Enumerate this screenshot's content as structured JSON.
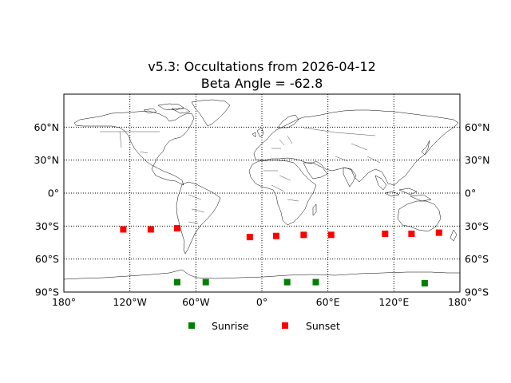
{
  "map": {
    "title_line1": "v5.3: Occultations from 2026-04-12",
    "title_line2": "Beta Angle = -62.8",
    "projection": "equirectangular",
    "lon_range": [
      -180,
      180
    ],
    "lat_range": [
      -90,
      90
    ],
    "lat_ticks": [
      {
        "value": 60,
        "label": "60°N"
      },
      {
        "value": 30,
        "label": "30°N"
      },
      {
        "value": 0,
        "label": "0°"
      },
      {
        "value": -30,
        "label": "30°S"
      },
      {
        "value": -60,
        "label": "60°S"
      },
      {
        "value": -90,
        "label": "90°S"
      }
    ],
    "lon_ticks": [
      {
        "value": -180,
        "label": "180°"
      },
      {
        "value": -120,
        "label": "120°W"
      },
      {
        "value": -60,
        "label": "60°W"
      },
      {
        "value": 0,
        "label": "0°"
      },
      {
        "value": 60,
        "label": "60°E"
      },
      {
        "value": 120,
        "label": "120°E"
      },
      {
        "value": 180,
        "label": "180°"
      }
    ],
    "grid": true,
    "legend": {
      "placement": "bottom-center",
      "sunrise_label": "Sunrise",
      "sunset_label": "Sunset"
    },
    "colors": {
      "sunrise": "#008000",
      "sunset": "#ff0000",
      "coastline": "#000000",
      "grid": "#000000"
    }
  },
  "chart_data": {
    "type": "scatter",
    "title": "v5.3: Occultations from 2026-04-12\nBeta Angle = -62.8",
    "xlim": [
      -180,
      180
    ],
    "ylim": [
      -90,
      90
    ],
    "series": [
      {
        "name": "Sunrise",
        "color": "#008000",
        "marker": "square",
        "points": [
          {
            "lon": -77,
            "lat": -81
          },
          {
            "lon": -51,
            "lat": -81
          },
          {
            "lon": 23,
            "lat": -81
          },
          {
            "lon": 49,
            "lat": -81
          },
          {
            "lon": 148,
            "lat": -82
          }
        ]
      },
      {
        "name": "Sunset",
        "color": "#ff0000",
        "marker": "square",
        "points": [
          {
            "lon": -126,
            "lat": -33
          },
          {
            "lon": -101,
            "lat": -33
          },
          {
            "lon": -77,
            "lat": -32
          },
          {
            "lon": -11,
            "lat": -40
          },
          {
            "lon": 13,
            "lat": -39
          },
          {
            "lon": 38,
            "lat": -38
          },
          {
            "lon": 63,
            "lat": -38
          },
          {
            "lon": 112,
            "lat": -37
          },
          {
            "lon": 136,
            "lat": -37
          },
          {
            "lon": 161,
            "lat": -36
          }
        ]
      }
    ]
  }
}
